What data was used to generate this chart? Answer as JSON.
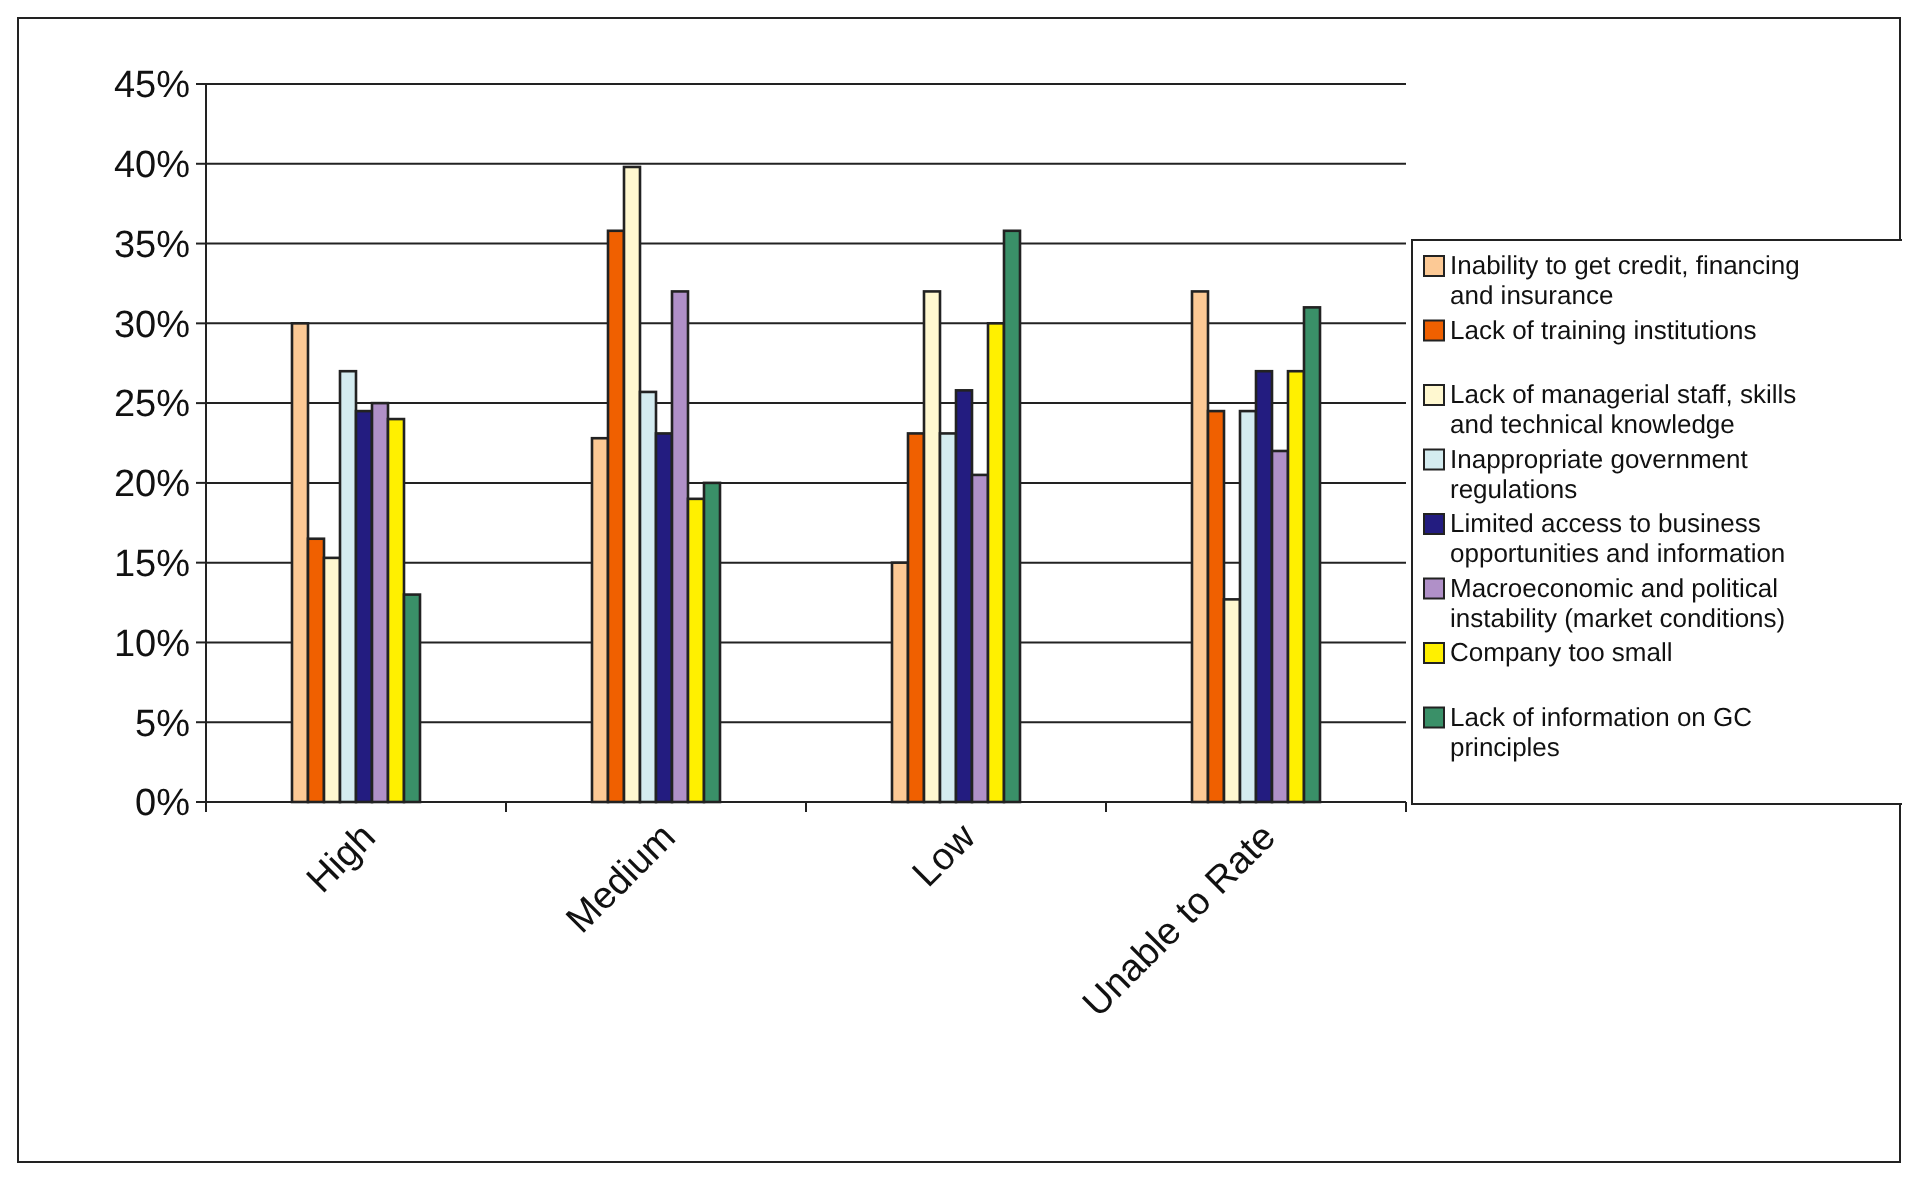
{
  "chart_data": {
    "type": "bar",
    "categories": [
      "High",
      "Medium",
      "Low",
      "Unable to Rate"
    ],
    "series": [
      {
        "name": "Inability to get credit, financing and insurance",
        "color": "#fcc995",
        "values": [
          30,
          22.8,
          15,
          32
        ]
      },
      {
        "name": "Lack of training institutions",
        "color": "#f06000",
        "values": [
          16.5,
          35.8,
          23.1,
          24.5
        ]
      },
      {
        "name": "Lack of managerial staff, skills and technical knowledge",
        "color": "#fff8d0",
        "values": [
          15.3,
          39.8,
          32,
          12.7
        ]
      },
      {
        "name": "Inappropriate government regulations",
        "color": "#d4ecf0",
        "values": [
          27,
          25.7,
          23.1,
          24.5
        ]
      },
      {
        "name": "Limited access to business opportunities and information",
        "color": "#231c80",
        "values": [
          24.5,
          23.1,
          25.8,
          27
        ]
      },
      {
        "name": "Macroeconomic and political instability (market conditions)",
        "color": "#b090c8",
        "values": [
          25,
          32,
          20.5,
          22
        ]
      },
      {
        "name": "Company too small",
        "color": "#fff000",
        "values": [
          24,
          19,
          30,
          27
        ]
      },
      {
        "name": "Lack of information on GC principles",
        "color": "#3a9068",
        "values": [
          13,
          20,
          35.8,
          31
        ]
      }
    ],
    "ylim": [
      0,
      45
    ],
    "yticks": [
      {
        "value": 0,
        "label": "0%"
      },
      {
        "value": 5,
        "label": "5%"
      },
      {
        "value": 10,
        "label": "10%"
      },
      {
        "value": 15,
        "label": "15%"
      },
      {
        "value": 20,
        "label": "20%"
      },
      {
        "value": 25,
        "label": "25%"
      },
      {
        "value": 30,
        "label": "30%"
      },
      {
        "value": 35,
        "label": "35%"
      },
      {
        "value": 40,
        "label": "40%"
      },
      {
        "value": 45,
        "label": "45%"
      }
    ],
    "grid": "y",
    "legend": "right"
  }
}
